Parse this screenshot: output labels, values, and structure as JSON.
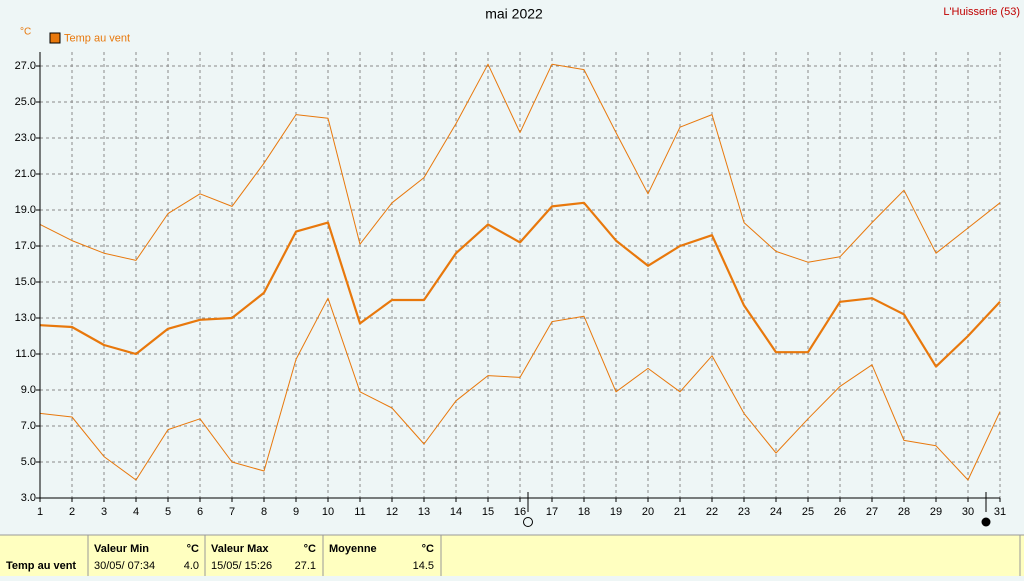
{
  "chart_data": {
    "type": "line",
    "title": "mai 2022",
    "station": "L'Huisserie (53)",
    "y_unit": "°C",
    "x": [
      1,
      2,
      3,
      4,
      5,
      6,
      7,
      8,
      9,
      10,
      11,
      12,
      13,
      14,
      15,
      16,
      17,
      18,
      19,
      20,
      21,
      22,
      23,
      24,
      25,
      26,
      27,
      28,
      29,
      30,
      31
    ],
    "xlim": [
      1,
      31
    ],
    "xticks": [
      1,
      2,
      3,
      4,
      5,
      6,
      7,
      8,
      9,
      10,
      11,
      12,
      13,
      14,
      15,
      16,
      17,
      18,
      19,
      20,
      21,
      22,
      23,
      24,
      25,
      26,
      27,
      28,
      29,
      30,
      31
    ],
    "ylim": [
      3,
      27.5
    ],
    "yticks": [
      {
        "value": 3,
        "label": "3.0"
      },
      {
        "value": 5,
        "label": "5.0"
      },
      {
        "value": 7,
        "label": "7.0"
      },
      {
        "value": 9,
        "label": "9.0"
      },
      {
        "value": 11,
        "label": "11.0"
      },
      {
        "value": 13,
        "label": "13.0"
      },
      {
        "value": 15,
        "label": "15.0"
      },
      {
        "value": 17,
        "label": "17.0"
      },
      {
        "value": 19,
        "label": "19.0"
      },
      {
        "value": 21,
        "label": "21.0"
      },
      {
        "value": 23,
        "label": "23.0"
      },
      {
        "value": 25,
        "label": "25.0"
      },
      {
        "value": 27,
        "label": "27.0"
      }
    ],
    "grid": true,
    "legend": "Temp au vent",
    "color": "#e8780c",
    "series": [
      {
        "values": [
          18.2,
          17.3,
          16.6,
          16.2,
          18.8,
          19.9,
          19.2,
          21.6,
          24.3,
          24.1,
          17.1,
          19.4,
          20.8,
          23.8,
          27.1,
          23.3,
          27.1,
          26.8,
          23.3,
          19.9,
          23.6,
          24.3,
          18.3,
          16.7,
          16.1,
          16.4,
          18.3,
          20.1,
          16.6,
          18.0,
          19.4
        ],
        "width": 1
      },
      {
        "values": [
          12.6,
          12.5,
          11.5,
          11.0,
          12.4,
          12.9,
          13.0,
          14.4,
          17.8,
          18.3,
          12.7,
          14.0,
          14.0,
          16.6,
          18.2,
          17.2,
          19.2,
          19.4,
          17.3,
          15.9,
          17.0,
          17.6,
          13.7,
          11.1,
          11.1,
          13.9,
          14.1,
          13.2,
          10.3,
          12.0,
          13.9
        ],
        "width": 2.2
      },
      {
        "values": [
          7.7,
          7.5,
          5.3,
          4.0,
          6.8,
          7.4,
          5.0,
          4.5,
          10.7,
          14.1,
          8.9,
          8.0,
          6.0,
          8.4,
          9.8,
          9.7,
          12.8,
          13.1,
          8.9,
          10.2,
          8.9,
          10.9,
          7.7,
          5.5,
          7.4,
          9.2,
          10.4,
          6.2,
          5.9,
          4.0,
          7.8
        ],
        "width": 1
      }
    ]
  },
  "summary": {
    "row_label": "Temp au vent",
    "columns": [
      {
        "title": "Valeur Min",
        "unit": "°C",
        "when": "30/05/ 07:34",
        "value": "4.0"
      },
      {
        "title": "Valeur Max",
        "unit": "°C",
        "when": "15/05/ 15:26",
        "value": "27.1"
      },
      {
        "title": "Moyenne",
        "unit": "°C",
        "when": "",
        "value": "14.5"
      }
    ]
  }
}
